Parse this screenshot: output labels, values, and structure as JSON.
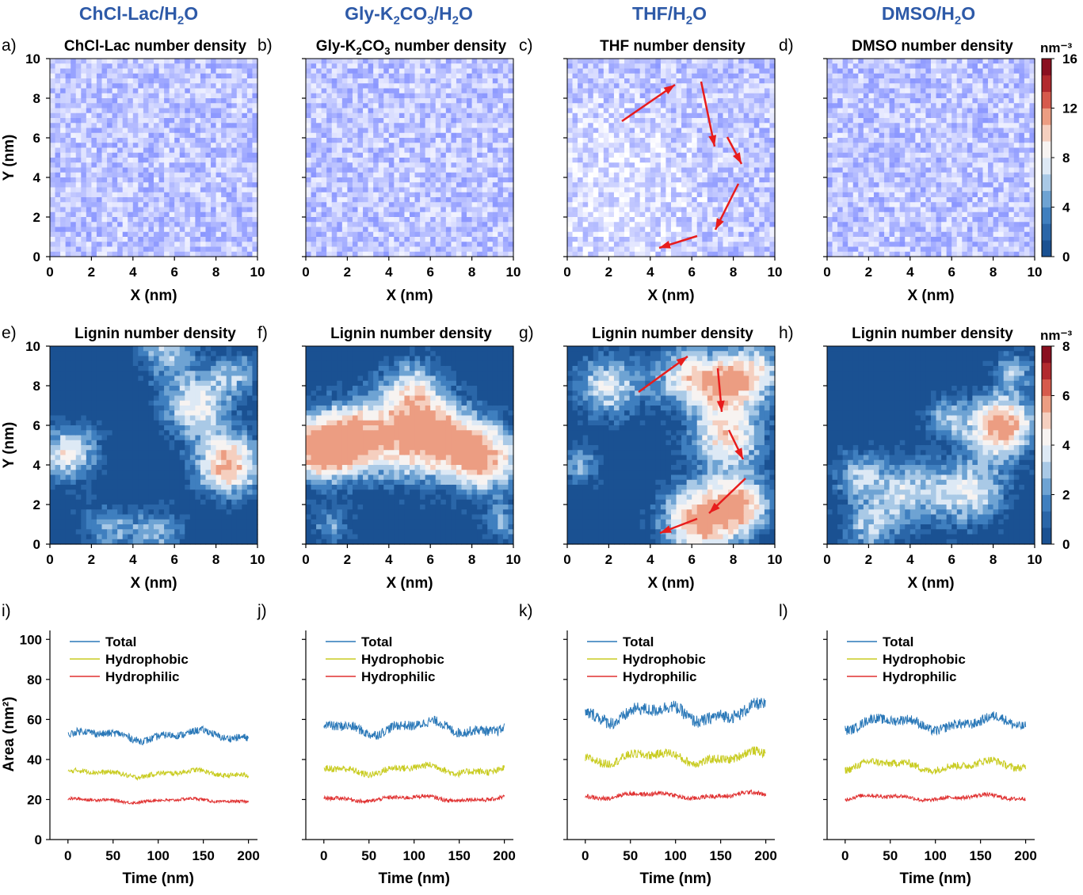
{
  "headers": [
    "ChCl-Lac/H2O",
    "Gly-K2CO3/H2O",
    "THF/H2O",
    "DMSO/H2O"
  ],
  "colorbar_unit": "nm⁻³",
  "chart_data": [
    {
      "type": "heatmap",
      "panel": "a)",
      "title": "ChCl-Lac number density",
      "xlabel": "X (nm)",
      "ylabel": "Y (nm)",
      "xlim": [
        0,
        10
      ],
      "ylim": [
        0,
        10
      ]
    },
    {
      "type": "heatmap",
      "panel": "b)",
      "title": "Gly-K2CO3 number density",
      "xlabel": "X (nm)",
      "ylabel": "",
      "xlim": [
        0,
        10
      ],
      "ylim": [
        0,
        10
      ]
    },
    {
      "type": "heatmap",
      "panel": "c)",
      "title": "THF number density",
      "xlabel": "X (nm)",
      "ylabel": "",
      "xlim": [
        0,
        10
      ],
      "ylim": [
        0,
        10
      ],
      "annotations": "red arrows"
    },
    {
      "type": "heatmap",
      "panel": "d)",
      "title": "DMSO number density",
      "xlabel": "X (nm)",
      "ylabel": "",
      "xlim": [
        0,
        10
      ],
      "ylim": [
        0,
        10
      ],
      "colorbar": {
        "min": 0,
        "max": 16,
        "ticks": [
          0,
          4,
          8,
          12,
          16
        ]
      }
    },
    {
      "type": "heatmap",
      "panel": "e)",
      "title": "Lignin number density",
      "xlabel": "X (nm)",
      "ylabel": "Y (nm)",
      "xlim": [
        0,
        10
      ],
      "ylim": [
        0,
        10
      ]
    },
    {
      "type": "heatmap",
      "panel": "f)",
      "title": "Lignin number density",
      "xlabel": "X (nm)",
      "ylabel": "",
      "xlim": [
        0,
        10
      ],
      "ylim": [
        0,
        10
      ]
    },
    {
      "type": "heatmap",
      "panel": "g)",
      "title": "Lignin number density",
      "xlabel": "X (nm)",
      "ylabel": "",
      "xlim": [
        0,
        10
      ],
      "ylim": [
        0,
        10
      ],
      "annotations": "red arrows"
    },
    {
      "type": "heatmap",
      "panel": "h)",
      "title": "Lignin number density",
      "xlabel": "X (nm)",
      "ylabel": "",
      "xlim": [
        0,
        10
      ],
      "ylim": [
        0,
        10
      ],
      "colorbar": {
        "min": 0,
        "max": 8,
        "ticks": [
          0,
          2,
          4,
          6,
          8
        ]
      }
    },
    {
      "type": "line",
      "panel": "i)",
      "xlabel": "Time (nm)",
      "ylabel": "Area (nm²)",
      "xlim": [
        -20,
        210
      ],
      "ylim": [
        0,
        110
      ],
      "x": [
        0,
        200
      ],
      "series": [
        {
          "name": "Total",
          "color": "#2a78b8",
          "mean": 52,
          "range": [
            47,
            62
          ]
        },
        {
          "name": "Hydrophobic",
          "color": "#c9cc22",
          "mean": 33,
          "range": [
            29,
            39
          ]
        },
        {
          "name": "Hydrophilic",
          "color": "#e03030",
          "mean": 19.5,
          "range": [
            17,
            23
          ]
        }
      ]
    },
    {
      "type": "line",
      "panel": "j)",
      "xlabel": "Time (nm)",
      "ylabel": "",
      "xlim": [
        -20,
        210
      ],
      "ylim": [
        0,
        110
      ],
      "x": [
        0,
        200
      ],
      "series": [
        {
          "name": "Total",
          "color": "#2a78b8",
          "mean": 56,
          "range": [
            50,
            70
          ]
        },
        {
          "name": "Hydrophobic",
          "color": "#c9cc22",
          "mean": 35,
          "range": [
            30,
            44
          ]
        },
        {
          "name": "Hydrophilic",
          "color": "#e03030",
          "mean": 20.5,
          "range": [
            17,
            25
          ]
        }
      ]
    },
    {
      "type": "line",
      "panel": "k)",
      "xlabel": "Time (nm)",
      "ylabel": "",
      "xlim": [
        -20,
        210
      ],
      "ylim": [
        0,
        110
      ],
      "x": [
        0,
        200
      ],
      "series": [
        {
          "name": "Total",
          "color": "#2a78b8",
          "mean": 63,
          "range": [
            53,
            79
          ]
        },
        {
          "name": "Hydrophobic",
          "color": "#c9cc22",
          "mean": 41,
          "range": [
            34,
            52
          ]
        },
        {
          "name": "Hydrophilic",
          "color": "#e03030",
          "mean": 22,
          "range": [
            18,
            27
          ]
        }
      ]
    },
    {
      "type": "line",
      "panel": "l)",
      "xlabel": "Time (nm)",
      "ylabel": "",
      "xlim": [
        -20,
        210
      ],
      "ylim": [
        0,
        110
      ],
      "x": [
        0,
        200
      ],
      "series": [
        {
          "name": "Total",
          "color": "#2a78b8",
          "mean": 58,
          "range": [
            48,
            68
          ]
        },
        {
          "name": "Hydrophobic",
          "color": "#c9cc22",
          "mean": 37,
          "range": [
            30,
            45
          ]
        },
        {
          "name": "Hydrophilic",
          "color": "#e03030",
          "mean": 21,
          "range": [
            17,
            25
          ]
        }
      ]
    }
  ]
}
